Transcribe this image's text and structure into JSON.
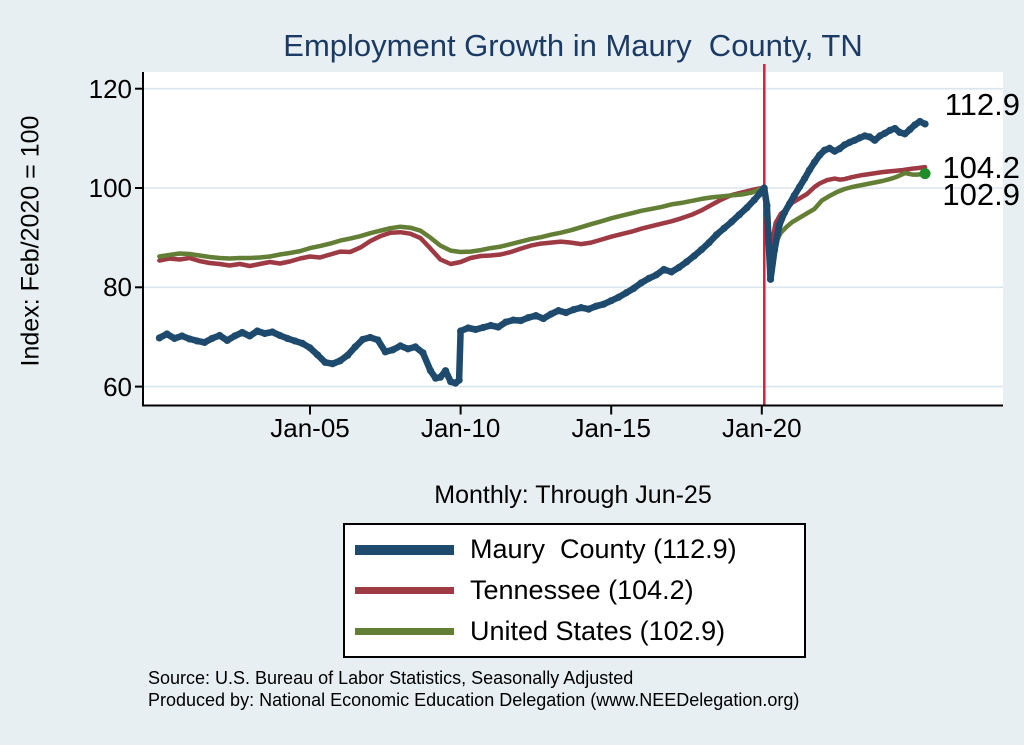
{
  "chart_data": {
    "type": "line",
    "title": "Employment Growth in Maury  County, TN",
    "subtitle": "Monthly: Through Jun-25",
    "ylabel": "Index: Feb/2020 = 100",
    "ylim": [
      56,
      124
    ],
    "xlim": [
      1999.5,
      2028
    ],
    "grid": "horizontal",
    "yticks": [
      60,
      80,
      100,
      120
    ],
    "xticks": [
      {
        "label": "Jan-05",
        "t": 2005
      },
      {
        "label": "Jan-10",
        "t": 2010
      },
      {
        "label": "Jan-15",
        "t": 2015
      },
      {
        "label": "Jan-20",
        "t": 2020
      }
    ],
    "vline": {
      "t": 2020.083,
      "color": "#d2203e"
    },
    "end_labels": [
      "112.9",
      "104.2",
      "102.9"
    ],
    "legend_position": "below",
    "series": [
      {
        "name": "Maury  County (112.9)",
        "color": "#1e4a6d",
        "last_value": 112.9,
        "points": [
          [
            2000.0,
            69.8
          ],
          [
            2000.25,
            70.6
          ],
          [
            2000.5,
            69.7
          ],
          [
            2000.75,
            70.2
          ],
          [
            2001.0,
            69.6
          ],
          [
            2001.25,
            69.2
          ],
          [
            2001.5,
            68.9
          ],
          [
            2001.75,
            69.7
          ],
          [
            2002.0,
            70.3
          ],
          [
            2002.25,
            69.3
          ],
          [
            2002.5,
            70.2
          ],
          [
            2002.75,
            70.9
          ],
          [
            2003.0,
            70.2
          ],
          [
            2003.25,
            71.2
          ],
          [
            2003.5,
            70.7
          ],
          [
            2003.75,
            71.0
          ],
          [
            2004.0,
            70.3
          ],
          [
            2004.25,
            69.7
          ],
          [
            2004.5,
            69.2
          ],
          [
            2004.75,
            68.7
          ],
          [
            2005.0,
            67.8
          ],
          [
            2005.25,
            66.4
          ],
          [
            2005.5,
            64.9
          ],
          [
            2005.75,
            64.6
          ],
          [
            2006.0,
            65.2
          ],
          [
            2006.25,
            66.3
          ],
          [
            2006.5,
            68.0
          ],
          [
            2006.75,
            69.5
          ],
          [
            2007.0,
            69.9
          ],
          [
            2007.25,
            69.4
          ],
          [
            2007.5,
            67.0
          ],
          [
            2007.75,
            67.4
          ],
          [
            2008.0,
            68.2
          ],
          [
            2008.25,
            67.6
          ],
          [
            2008.5,
            68.0
          ],
          [
            2008.75,
            66.8
          ],
          [
            2009.0,
            63.2
          ],
          [
            2009.17,
            61.7
          ],
          [
            2009.33,
            61.9
          ],
          [
            2009.5,
            63.2
          ],
          [
            2009.67,
            61.0
          ],
          [
            2009.83,
            60.7
          ],
          [
            2009.95,
            61.3
          ],
          [
            2010.0,
            71.2
          ],
          [
            2010.25,
            71.8
          ],
          [
            2010.5,
            71.5
          ],
          [
            2010.75,
            71.9
          ],
          [
            2011.0,
            72.3
          ],
          [
            2011.25,
            72.0
          ],
          [
            2011.5,
            73.0
          ],
          [
            2011.75,
            73.4
          ],
          [
            2012.0,
            73.3
          ],
          [
            2012.25,
            73.9
          ],
          [
            2012.5,
            74.3
          ],
          [
            2012.75,
            73.7
          ],
          [
            2013.0,
            74.6
          ],
          [
            2013.25,
            75.3
          ],
          [
            2013.5,
            74.9
          ],
          [
            2013.75,
            75.5
          ],
          [
            2014.0,
            75.9
          ],
          [
            2014.25,
            75.6
          ],
          [
            2014.5,
            76.2
          ],
          [
            2014.75,
            76.6
          ],
          [
            2015.0,
            77.3
          ],
          [
            2015.25,
            78.0
          ],
          [
            2015.5,
            78.9
          ],
          [
            2015.75,
            79.8
          ],
          [
            2016.0,
            80.9
          ],
          [
            2016.25,
            81.8
          ],
          [
            2016.5,
            82.5
          ],
          [
            2016.75,
            83.6
          ],
          [
            2017.0,
            83.1
          ],
          [
            2017.25,
            84.0
          ],
          [
            2017.5,
            85.1
          ],
          [
            2017.75,
            86.3
          ],
          [
            2018.0,
            87.6
          ],
          [
            2018.25,
            89.0
          ],
          [
            2018.5,
            90.6
          ],
          [
            2018.75,
            91.9
          ],
          [
            2019.0,
            93.2
          ],
          [
            2019.25,
            94.6
          ],
          [
            2019.5,
            96.0
          ],
          [
            2019.75,
            97.6
          ],
          [
            2019.92,
            98.8
          ],
          [
            2020.08,
            100.0
          ],
          [
            2020.17,
            96.5
          ],
          [
            2020.29,
            81.6
          ],
          [
            2020.42,
            87.5
          ],
          [
            2020.58,
            92.5
          ],
          [
            2020.75,
            95.0
          ],
          [
            2020.92,
            96.8
          ],
          [
            2021.08,
            98.5
          ],
          [
            2021.25,
            100.2
          ],
          [
            2021.42,
            101.9
          ],
          [
            2021.58,
            103.6
          ],
          [
            2021.75,
            105.2
          ],
          [
            2021.92,
            106.6
          ],
          [
            2022.08,
            107.6
          ],
          [
            2022.25,
            108.0
          ],
          [
            2022.42,
            107.4
          ],
          [
            2022.58,
            107.9
          ],
          [
            2022.75,
            108.7
          ],
          [
            2022.92,
            109.2
          ],
          [
            2023.08,
            109.6
          ],
          [
            2023.25,
            110.1
          ],
          [
            2023.42,
            110.5
          ],
          [
            2023.58,
            110.3
          ],
          [
            2023.75,
            109.6
          ],
          [
            2023.92,
            110.5
          ],
          [
            2024.08,
            111.0
          ],
          [
            2024.25,
            111.6
          ],
          [
            2024.42,
            112.0
          ],
          [
            2024.58,
            111.2
          ],
          [
            2024.75,
            110.9
          ],
          [
            2024.92,
            111.8
          ],
          [
            2025.08,
            112.7
          ],
          [
            2025.25,
            113.4
          ],
          [
            2025.42,
            112.9
          ]
        ]
      },
      {
        "name": "Tennessee (104.2)",
        "color": "#9e3a44",
        "last_value": 104.2,
        "points": [
          [
            2000.0,
            85.4
          ],
          [
            2000.33,
            85.8
          ],
          [
            2000.67,
            85.6
          ],
          [
            2001.0,
            85.9
          ],
          [
            2001.33,
            85.3
          ],
          [
            2001.67,
            84.9
          ],
          [
            2002.0,
            84.7
          ],
          [
            2002.33,
            84.4
          ],
          [
            2002.67,
            84.7
          ],
          [
            2003.0,
            84.3
          ],
          [
            2003.33,
            84.7
          ],
          [
            2003.67,
            85.1
          ],
          [
            2004.0,
            84.8
          ],
          [
            2004.33,
            85.2
          ],
          [
            2004.67,
            85.8
          ],
          [
            2005.0,
            86.2
          ],
          [
            2005.33,
            86.0
          ],
          [
            2005.67,
            86.6
          ],
          [
            2006.0,
            87.2
          ],
          [
            2006.33,
            87.1
          ],
          [
            2006.67,
            88.0
          ],
          [
            2007.0,
            89.3
          ],
          [
            2007.33,
            90.3
          ],
          [
            2007.67,
            91.0
          ],
          [
            2008.0,
            91.1
          ],
          [
            2008.33,
            90.8
          ],
          [
            2008.67,
            89.9
          ],
          [
            2009.0,
            87.8
          ],
          [
            2009.33,
            85.6
          ],
          [
            2009.67,
            84.7
          ],
          [
            2010.0,
            85.1
          ],
          [
            2010.33,
            85.9
          ],
          [
            2010.67,
            86.3
          ],
          [
            2011.0,
            86.4
          ],
          [
            2011.33,
            86.6
          ],
          [
            2011.67,
            87.1
          ],
          [
            2012.0,
            87.8
          ],
          [
            2012.33,
            88.4
          ],
          [
            2012.67,
            88.8
          ],
          [
            2013.0,
            89.0
          ],
          [
            2013.33,
            89.2
          ],
          [
            2013.67,
            89.0
          ],
          [
            2014.0,
            88.7
          ],
          [
            2014.33,
            89.0
          ],
          [
            2014.67,
            89.6
          ],
          [
            2015.0,
            90.2
          ],
          [
            2015.33,
            90.7
          ],
          [
            2015.67,
            91.2
          ],
          [
            2016.0,
            91.8
          ],
          [
            2016.33,
            92.3
          ],
          [
            2016.67,
            92.8
          ],
          [
            2017.0,
            93.3
          ],
          [
            2017.33,
            93.9
          ],
          [
            2017.67,
            94.6
          ],
          [
            2018.0,
            95.5
          ],
          [
            2018.33,
            96.6
          ],
          [
            2018.67,
            97.7
          ],
          [
            2019.0,
            98.6
          ],
          [
            2019.33,
            99.1
          ],
          [
            2019.67,
            99.6
          ],
          [
            2019.92,
            99.9
          ],
          [
            2020.08,
            100.0
          ],
          [
            2020.29,
            87.5
          ],
          [
            2020.46,
            93.0
          ],
          [
            2020.63,
            94.8
          ],
          [
            2020.83,
            95.7
          ],
          [
            2021.0,
            97.0
          ],
          [
            2021.25,
            97.9
          ],
          [
            2021.5,
            98.8
          ],
          [
            2021.75,
            100.2
          ],
          [
            2021.92,
            100.9
          ],
          [
            2022.17,
            101.6
          ],
          [
            2022.42,
            101.9
          ],
          [
            2022.58,
            101.7
          ],
          [
            2022.75,
            101.8
          ],
          [
            2023.0,
            102.2
          ],
          [
            2023.33,
            102.6
          ],
          [
            2023.67,
            102.9
          ],
          [
            2024.0,
            103.2
          ],
          [
            2024.33,
            103.4
          ],
          [
            2024.67,
            103.6
          ],
          [
            2025.0,
            103.9
          ],
          [
            2025.17,
            104.0
          ],
          [
            2025.42,
            104.2
          ]
        ]
      },
      {
        "name": "United States (102.9)",
        "color": "#627f35",
        "last_value": 102.9,
        "end_marker_color": "#1e8c28",
        "points": [
          [
            2000.0,
            86.2
          ],
          [
            2000.33,
            86.5
          ],
          [
            2000.67,
            86.8
          ],
          [
            2001.0,
            86.7
          ],
          [
            2001.33,
            86.4
          ],
          [
            2001.67,
            86.1
          ],
          [
            2002.0,
            85.9
          ],
          [
            2002.33,
            85.8
          ],
          [
            2002.67,
            85.9
          ],
          [
            2003.0,
            85.9
          ],
          [
            2003.33,
            86.0
          ],
          [
            2003.67,
            86.2
          ],
          [
            2004.0,
            86.6
          ],
          [
            2004.33,
            86.9
          ],
          [
            2004.67,
            87.3
          ],
          [
            2005.0,
            87.9
          ],
          [
            2005.33,
            88.3
          ],
          [
            2005.67,
            88.8
          ],
          [
            2006.0,
            89.4
          ],
          [
            2006.33,
            89.8
          ],
          [
            2006.67,
            90.3
          ],
          [
            2007.0,
            90.9
          ],
          [
            2007.33,
            91.4
          ],
          [
            2007.67,
            91.9
          ],
          [
            2008.0,
            92.2
          ],
          [
            2008.33,
            92.0
          ],
          [
            2008.67,
            91.4
          ],
          [
            2009.0,
            90.0
          ],
          [
            2009.33,
            88.4
          ],
          [
            2009.67,
            87.4
          ],
          [
            2010.0,
            87.1
          ],
          [
            2010.33,
            87.2
          ],
          [
            2010.67,
            87.5
          ],
          [
            2011.0,
            87.9
          ],
          [
            2011.33,
            88.2
          ],
          [
            2011.67,
            88.7
          ],
          [
            2012.0,
            89.2
          ],
          [
            2012.33,
            89.7
          ],
          [
            2012.67,
            90.1
          ],
          [
            2013.0,
            90.6
          ],
          [
            2013.33,
            91.0
          ],
          [
            2013.67,
            91.5
          ],
          [
            2014.0,
            92.1
          ],
          [
            2014.33,
            92.7
          ],
          [
            2014.67,
            93.3
          ],
          [
            2015.0,
            93.9
          ],
          [
            2015.33,
            94.4
          ],
          [
            2015.67,
            94.9
          ],
          [
            2016.0,
            95.4
          ],
          [
            2016.33,
            95.8
          ],
          [
            2016.67,
            96.2
          ],
          [
            2017.0,
            96.7
          ],
          [
            2017.33,
            97.0
          ],
          [
            2017.67,
            97.4
          ],
          [
            2018.0,
            97.8
          ],
          [
            2018.33,
            98.1
          ],
          [
            2018.67,
            98.3
          ],
          [
            2019.0,
            98.5
          ],
          [
            2019.33,
            98.7
          ],
          [
            2019.67,
            99.1
          ],
          [
            2019.92,
            99.7
          ],
          [
            2020.08,
            100.0
          ],
          [
            2020.29,
            84.3
          ],
          [
            2020.46,
            89.0
          ],
          [
            2020.63,
            91.0
          ],
          [
            2020.83,
            92.2
          ],
          [
            2021.0,
            93.1
          ],
          [
            2021.25,
            94.0
          ],
          [
            2021.5,
            94.9
          ],
          [
            2021.75,
            95.8
          ],
          [
            2022.0,
            97.5
          ],
          [
            2022.25,
            98.4
          ],
          [
            2022.5,
            99.2
          ],
          [
            2022.75,
            99.8
          ],
          [
            2023.0,
            100.2
          ],
          [
            2023.25,
            100.5
          ],
          [
            2023.5,
            100.8
          ],
          [
            2023.75,
            101.1
          ],
          [
            2024.0,
            101.4
          ],
          [
            2024.25,
            101.8
          ],
          [
            2024.5,
            102.3
          ],
          [
            2024.75,
            103.0
          ],
          [
            2025.0,
            102.7
          ],
          [
            2025.17,
            102.7
          ],
          [
            2025.42,
            102.9
          ]
        ]
      }
    ]
  },
  "footer": {
    "line1": "Source: U.S. Bureau of Labor Statistics, Seasonally Adjusted",
    "line2": "Produced by: National Economic Education Delegation (www.NEEDelegation.org)"
  },
  "colors": {
    "background": "#e7eff2",
    "plot_background": "#ffffff",
    "gridline": "#d9e6ed",
    "axis": "#000000",
    "title": "#1b3a64",
    "reference_line": "#d2203e"
  }
}
